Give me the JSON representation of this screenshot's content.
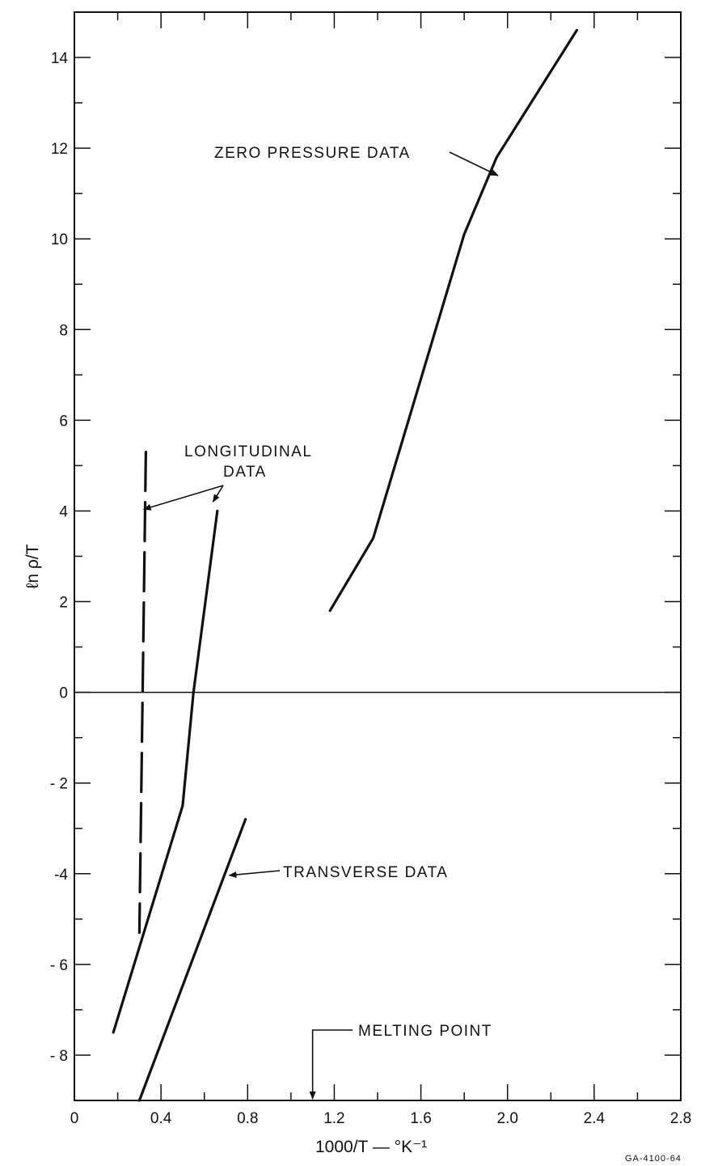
{
  "chart_data": {
    "type": "line",
    "title": "",
    "xlabel": "1000/T — °K⁻¹",
    "ylabel": "ℓn ρ/T",
    "xlim": [
      0,
      2.8
    ],
    "ylim": [
      -9,
      15
    ],
    "x_ticks": [
      "0",
      "0.4",
      "0.8",
      "1.2",
      "1.6",
      "2.0",
      "2.4",
      "2.8"
    ],
    "y_ticks": [
      "14",
      "12",
      "10",
      "8",
      "6",
      "4",
      "2",
      "0",
      "- 2",
      "-4",
      "- 6",
      "- 8"
    ],
    "grid": false,
    "figure_id": "GA-4100-64",
    "series": [
      {
        "name": "ZERO PRESSURE DATA",
        "style": "solid",
        "x": [
          1.18,
          1.38,
          1.8,
          1.95,
          2.32
        ],
        "y": [
          1.8,
          3.4,
          10.1,
          11.8,
          14.6
        ]
      },
      {
        "name": "LONGITUDINAL DATA",
        "style": "dashed",
        "x": [
          0.33,
          0.3
        ],
        "y": [
          5.3,
          -5.3
        ]
      },
      {
        "name": "LONGITUDINAL DATA",
        "style": "solid",
        "x": [
          0.18,
          0.5,
          0.55,
          0.66
        ],
        "y": [
          -7.5,
          -2.5,
          0.0,
          4.0
        ]
      },
      {
        "name": "TRANSVERSE DATA",
        "style": "solid",
        "x": [
          0.3,
          0.79
        ],
        "y": [
          -9.0,
          -2.8
        ]
      }
    ],
    "annotations": [
      {
        "text": "ZERO PRESSURE DATA"
      },
      {
        "text": "LONGITUDINAL"
      },
      {
        "text": "DATA"
      },
      {
        "text": "TRANSVERSE DATA"
      },
      {
        "text": "MELTING POINT",
        "x": 1.1
      }
    ]
  }
}
